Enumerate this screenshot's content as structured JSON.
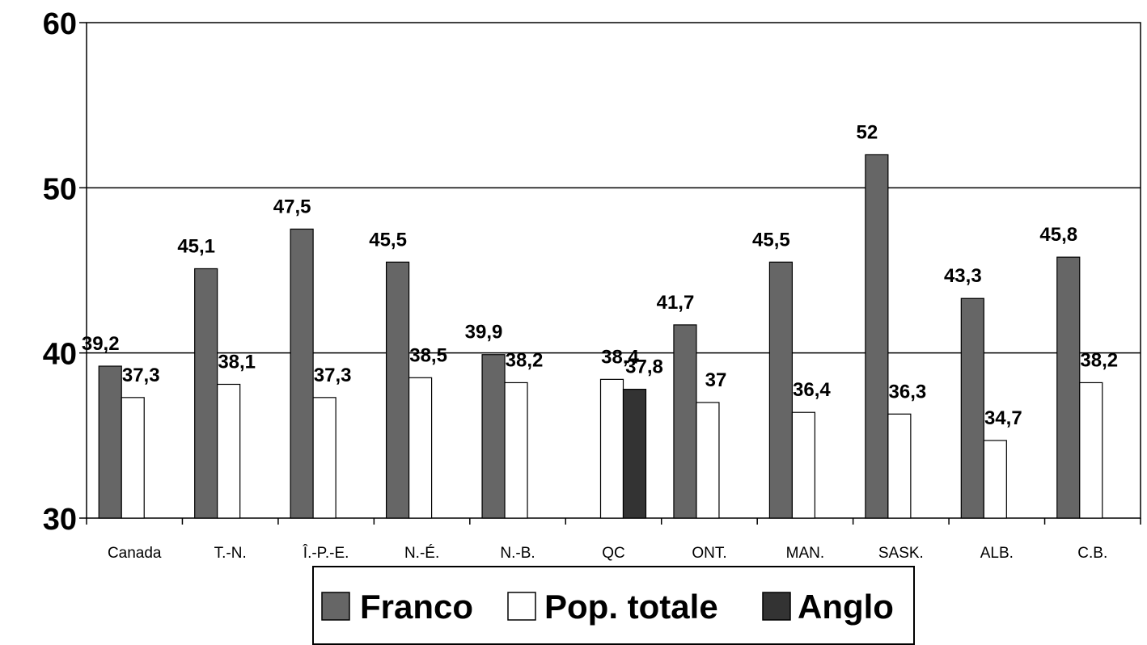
{
  "chart_data": {
    "type": "bar",
    "categories": [
      "Canada",
      "T.-N.",
      "Î.-P.-E.",
      "N.-É.",
      "N.-B.",
      "QC",
      "ONT.",
      "MAN.",
      "SASK.",
      "ALB.",
      "C.B."
    ],
    "series": [
      {
        "name": "Franco",
        "values": [
          39.2,
          45.1,
          47.5,
          45.5,
          39.9,
          null,
          41.7,
          45.5,
          52,
          43.3,
          45.8
        ],
        "labels": [
          "39,2",
          "45,1",
          "47,5",
          "45,5",
          "39,9",
          "",
          "41,7",
          "45,5",
          "52",
          "43,3",
          "45,8"
        ],
        "color": "#666666"
      },
      {
        "name": "Pop. totale",
        "values": [
          37.3,
          38.1,
          37.3,
          38.5,
          38.2,
          38.4,
          37,
          36.4,
          36.3,
          34.7,
          38.2
        ],
        "labels": [
          "37,3",
          "38,1",
          "37,3",
          "38,5",
          "38,2",
          "38,4",
          "37",
          "36,4",
          "36,3",
          "34,7",
          "38,2"
        ],
        "color": "#ffffff"
      },
      {
        "name": "Anglo",
        "values": [
          null,
          null,
          null,
          null,
          null,
          37.8,
          null,
          null,
          null,
          null,
          null
        ],
        "labels": [
          "",
          "",
          "",
          "",
          "",
          "37,8",
          "",
          "",
          "",
          "",
          ""
        ],
        "color": "#333333"
      }
    ],
    "ylim": [
      30,
      60
    ],
    "yticks": [
      "30",
      "40",
      "50",
      "60"
    ],
    "ytick_values": [
      30,
      40,
      50,
      60
    ],
    "gridlines": [
      40,
      50
    ],
    "legend_position": "bottom-center"
  }
}
